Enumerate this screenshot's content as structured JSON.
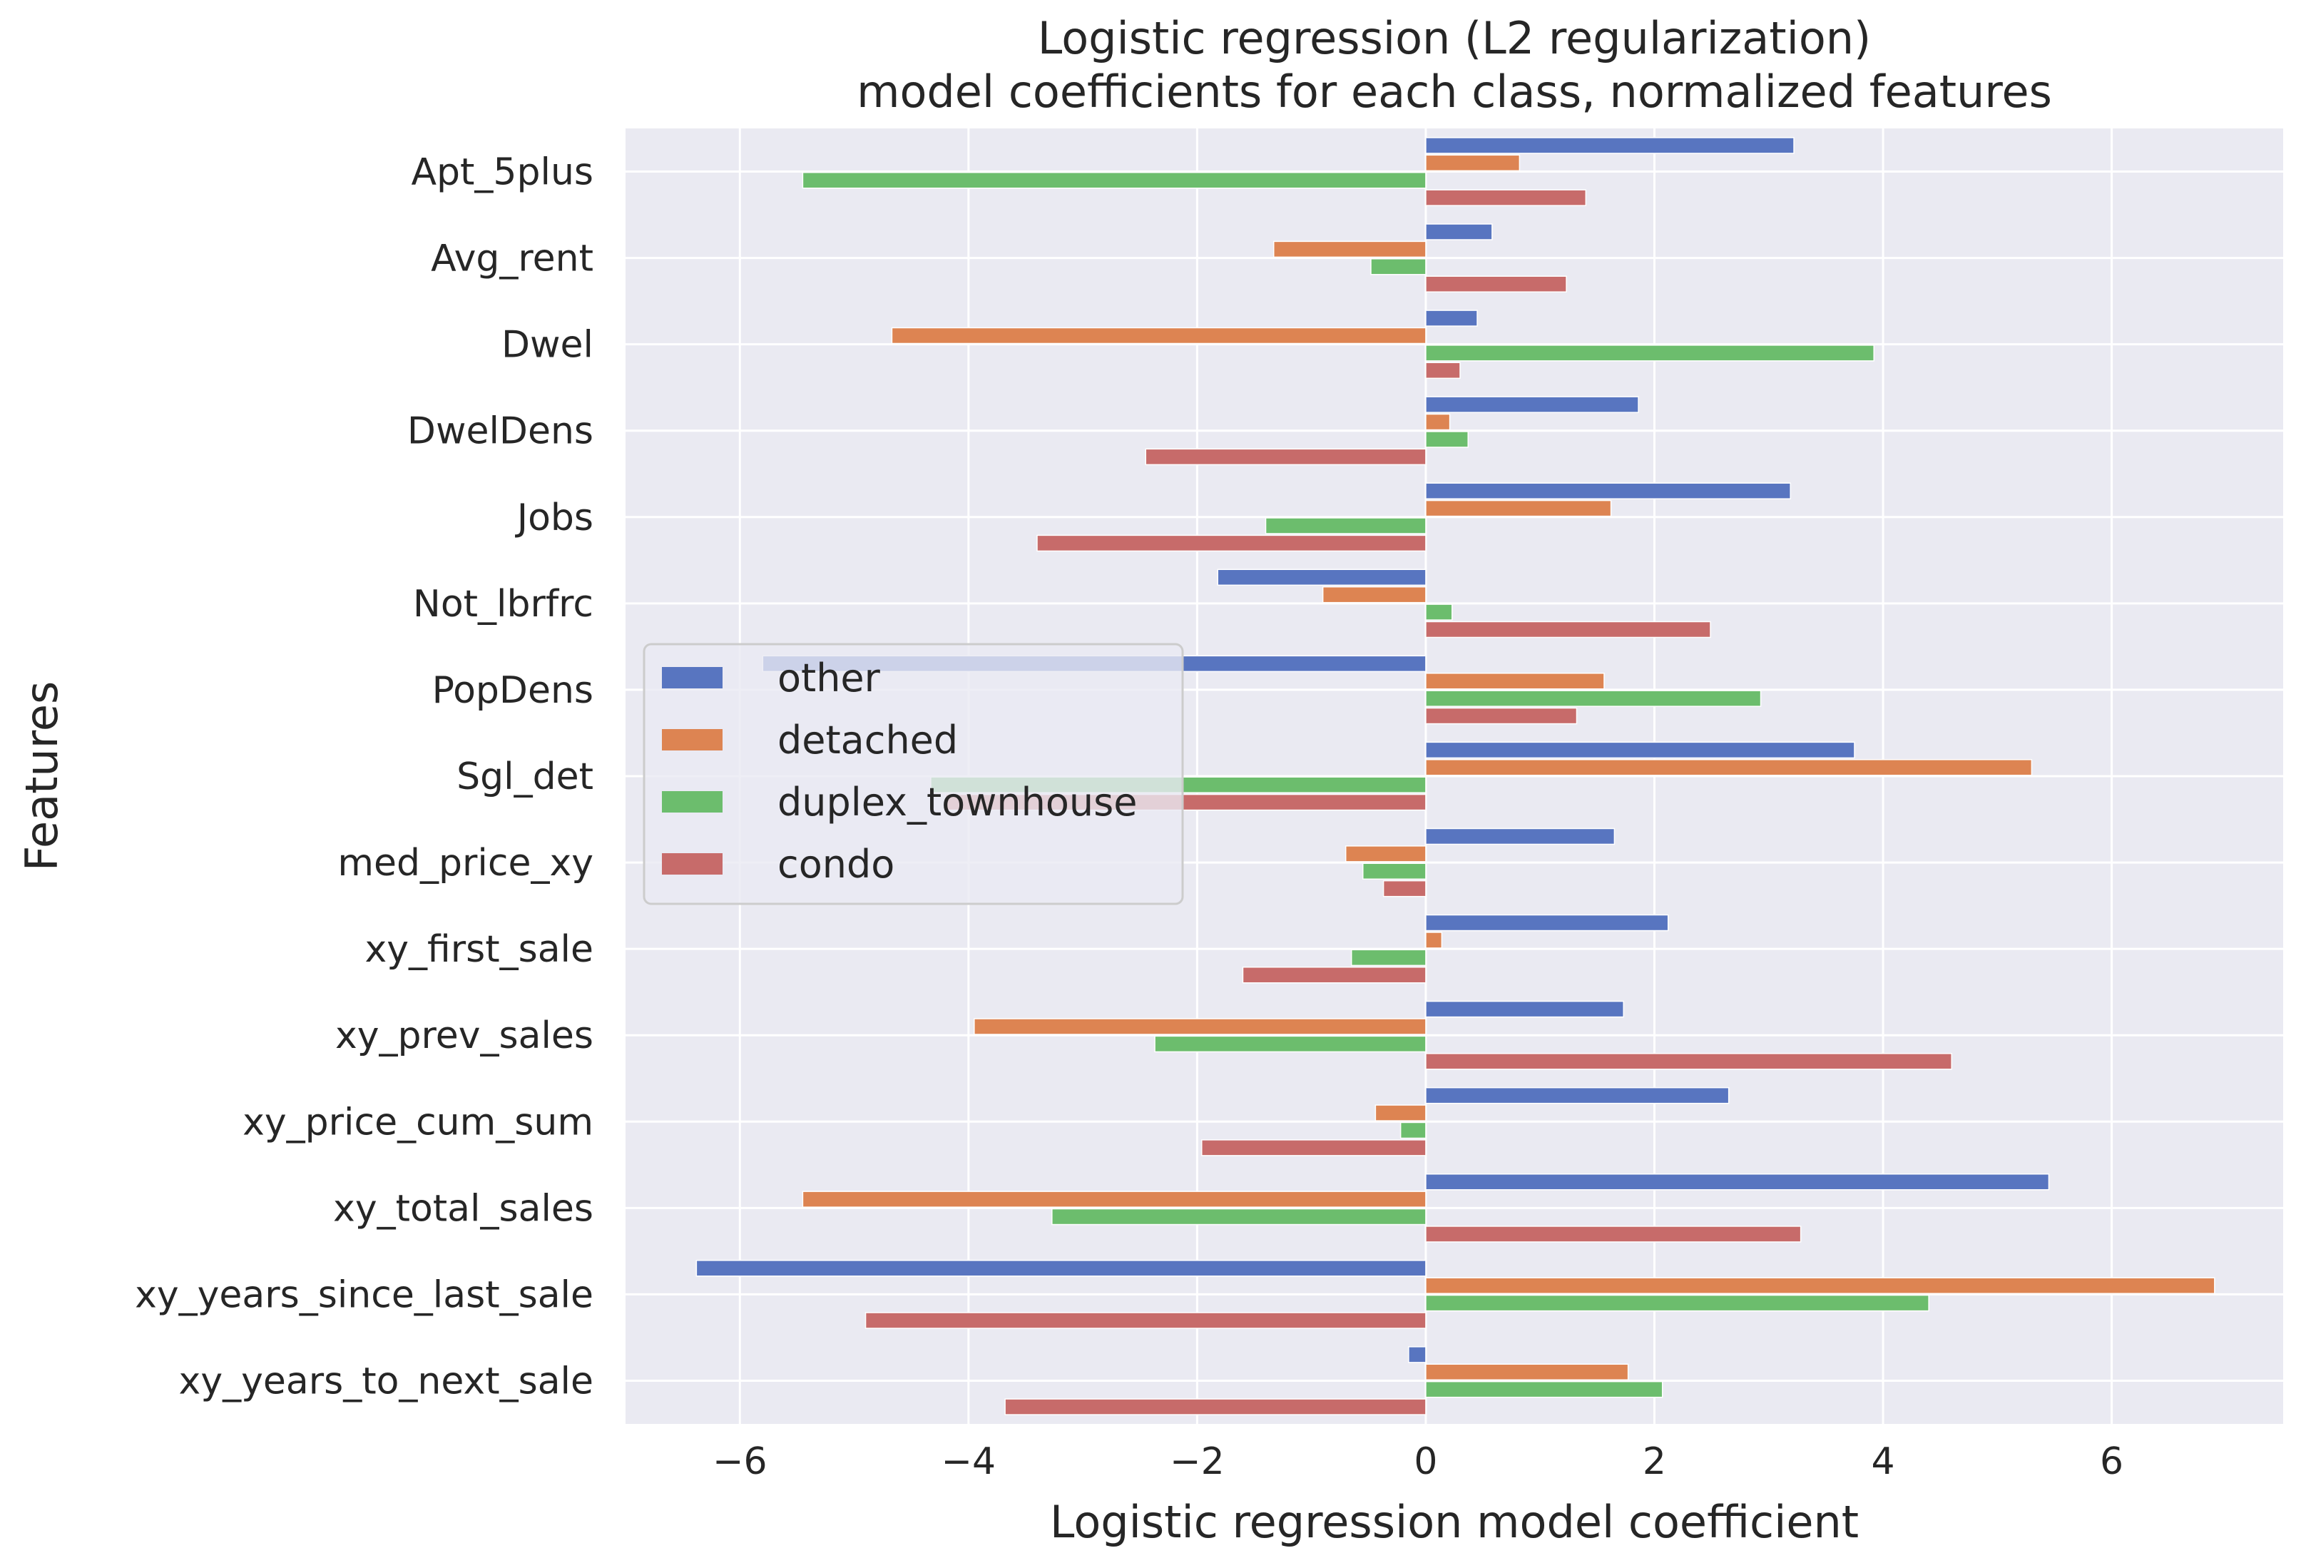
{
  "chart_data": {
    "type": "bar",
    "orientation": "horizontal",
    "title": "Logistic regression (L2 regularization)",
    "subtitle": "model coefficients for each class, normalized features",
    "xlabel": "Logistic regression model coefficient",
    "ylabel": "Features",
    "xlim": [
      -7.0,
      7.5
    ],
    "xticks": [
      -6,
      -4,
      -2,
      0,
      2,
      4,
      6
    ],
    "xtick_labels": [
      "−6",
      "−4",
      "−2",
      "0",
      "2",
      "4",
      "6"
    ],
    "grid": true,
    "legend_position": "center-left",
    "categories": [
      "Apt_5plus",
      "Avg_rent",
      "Dwel",
      "DwelDens",
      "Jobs",
      "Not_lbrfrc",
      "PopDens",
      "Sgl_det",
      "med_price_xy",
      "xy_first_sale",
      "xy_prev_sales",
      "xy_price_cum_sum",
      "xy_total_sales",
      "xy_years_since_last_sale",
      "xy_years_to_next_sale"
    ],
    "series": [
      {
        "name": "other",
        "color": "#5875c0",
        "values": [
          3.22,
          0.58,
          0.45,
          1.86,
          3.19,
          -1.82,
          -5.8,
          3.75,
          1.65,
          2.12,
          1.73,
          2.65,
          5.45,
          -6.38,
          -0.15
        ]
      },
      {
        "name": "detached",
        "color": "#dd8452",
        "values": [
          0.82,
          -1.33,
          -4.67,
          0.21,
          1.62,
          -0.9,
          1.56,
          5.3,
          -0.7,
          0.14,
          -3.95,
          -0.44,
          -5.45,
          6.9,
          1.77
        ]
      },
      {
        "name": "duplex_townhouse",
        "color": "#6cbd6d",
        "values": [
          -5.45,
          -0.48,
          3.92,
          0.37,
          -1.4,
          0.23,
          2.93,
          -4.33,
          -0.55,
          -0.65,
          -2.37,
          -0.22,
          -3.27,
          4.4,
          2.07
        ]
      },
      {
        "name": "condo",
        "color": "#c76b6a",
        "values": [
          1.4,
          1.23,
          0.3,
          -2.45,
          -3.4,
          2.49,
          1.32,
          -4.2,
          -0.37,
          -1.6,
          4.6,
          -1.96,
          3.28,
          -4.9,
          -3.68
        ]
      }
    ]
  }
}
